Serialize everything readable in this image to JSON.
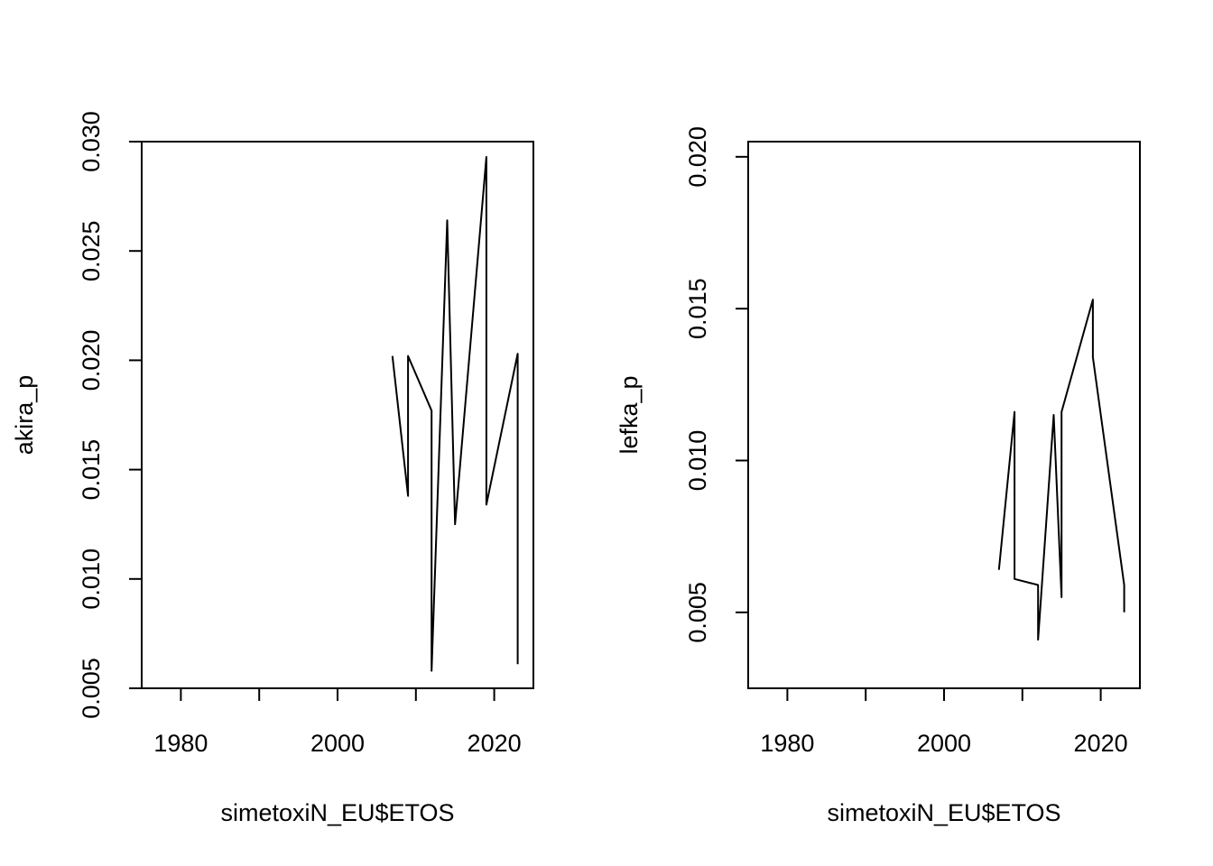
{
  "chart_data": [
    {
      "type": "line",
      "title": "",
      "xlabel": "simetoxiN_EU$ETOS",
      "ylabel": "akira_p",
      "xlim": [
        1975,
        2025
      ],
      "ylim": [
        0.005,
        0.03
      ],
      "xticks": [
        1980,
        1990,
        2000,
        2010,
        2020
      ],
      "xtick_labels": [
        "1980",
        "",
        "2000",
        "",
        "2020"
      ],
      "yticks": [
        0.005,
        0.01,
        0.015,
        0.02,
        0.025,
        0.03
      ],
      "ytick_labels": [
        "0.005",
        "0.010",
        "0.015",
        "0.020",
        "0.025",
        "0.030"
      ],
      "grid": false,
      "legend": "none",
      "series": [
        {
          "color": "#000000",
          "points": [
            [
              2007,
              0.0202
            ],
            [
              2009,
              0.0138
            ],
            [
              2009,
              0.0202
            ],
            [
              2012,
              0.0177
            ],
            [
              2012,
              0.0058
            ],
            [
              2014,
              0.0264
            ],
            [
              2015,
              0.0125
            ],
            [
              2019,
              0.0293
            ],
            [
              2019,
              0.0134
            ],
            [
              2023,
              0.0203
            ],
            [
              2023,
              0.0061
            ]
          ]
        }
      ]
    },
    {
      "type": "line",
      "title": "",
      "xlabel": "simetoxiN_EU$ETOS",
      "ylabel": "lefka_p",
      "xlim": [
        1975,
        2025
      ],
      "ylim": [
        0.0025,
        0.0205
      ],
      "xticks": [
        1980,
        1990,
        2000,
        2010,
        2020
      ],
      "xtick_labels": [
        "1980",
        "",
        "2000",
        "",
        "2020"
      ],
      "yticks": [
        0.005,
        0.01,
        0.015,
        0.02
      ],
      "ytick_labels": [
        "0.005",
        "0.010",
        "0.015",
        "0.020"
      ],
      "grid": false,
      "legend": "none",
      "series": [
        {
          "color": "#000000",
          "points": [
            [
              2007,
              0.0064
            ],
            [
              2009,
              0.0116
            ],
            [
              2009,
              0.0061
            ],
            [
              2012,
              0.0059
            ],
            [
              2012,
              0.0041
            ],
            [
              2014,
              0.0115
            ],
            [
              2015,
              0.0055
            ],
            [
              2015,
              0.0116
            ],
            [
              2019,
              0.0153
            ],
            [
              2019,
              0.0134
            ],
            [
              2023,
              0.0059
            ],
            [
              2023,
              0.005
            ]
          ]
        }
      ]
    }
  ]
}
